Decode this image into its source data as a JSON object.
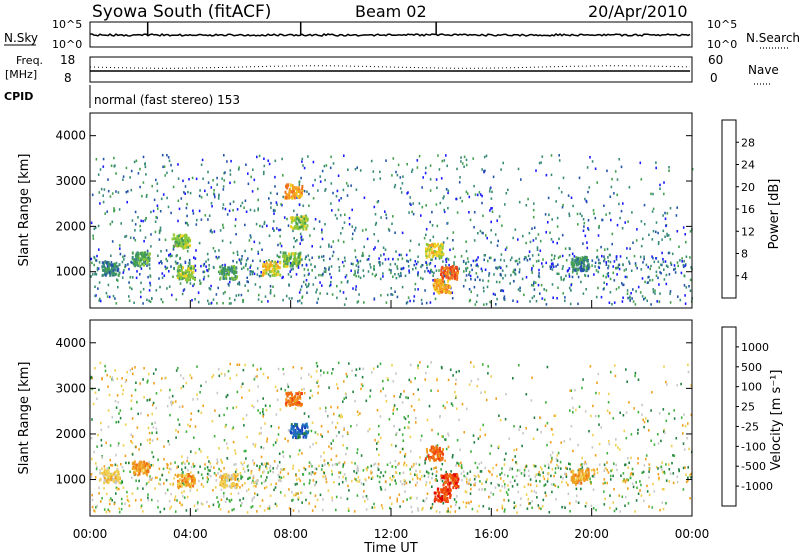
{
  "header": {
    "title": "Syowa South (fitACF)",
    "beam": "Beam 02",
    "date": "20/Apr/2010"
  },
  "noise_panel": {
    "left_label": "N.Sky",
    "right_label": "N.Search",
    "left_ticks": [
      "10^5",
      "10^0"
    ],
    "right_ticks": [
      "10^5",
      "10^0"
    ]
  },
  "freq_panel": {
    "left_label_1": "Freq.",
    "left_label_2": "[MHz]",
    "left_ticks": [
      "18",
      "8"
    ],
    "right_ticks": [
      "60",
      "0"
    ],
    "right_label": "Nave"
  },
  "cpid": {
    "label": "CPID",
    "text": "normal (fast stereo) 153"
  },
  "chart_data": [
    {
      "type": "heatmap",
      "name": "power",
      "ylabel": "Slant Range [km]",
      "xlabel": "",
      "xlim": [
        0,
        24
      ],
      "ylim": [
        200,
        4500
      ],
      "yticks": [
        "1000",
        "2000",
        "3000",
        "4000"
      ],
      "colorbar_label": "Power [dB]",
      "colorbar_ticks": [
        "4",
        "8",
        "12",
        "16",
        "20",
        "24",
        "28"
      ],
      "colorbar_colors": [
        "#1a1aff",
        "#2454a8",
        "#3a8a7a",
        "#44a050",
        "#8cc83c",
        "#f0d020",
        "#f4a020",
        "#f07020",
        "#e84020",
        "#e01010"
      ],
      "clusters": [
        {
          "t": 0.8,
          "r": 1100,
          "level": 2
        },
        {
          "t": 2.0,
          "r": 1300,
          "level": 3
        },
        {
          "t": 3.6,
          "r": 1700,
          "level": 4
        },
        {
          "t": 3.8,
          "r": 1000,
          "level": 4
        },
        {
          "t": 5.5,
          "r": 1000,
          "level": 3
        },
        {
          "t": 7.2,
          "r": 1100,
          "level": 5
        },
        {
          "t": 8.1,
          "r": 2800,
          "level": 6
        },
        {
          "t": 8.3,
          "r": 2100,
          "level": 4
        },
        {
          "t": 8.0,
          "r": 1300,
          "level": 4
        },
        {
          "t": 13.7,
          "r": 1500,
          "level": 5
        },
        {
          "t": 14.3,
          "r": 1000,
          "level": 7
        },
        {
          "t": 14.0,
          "r": 700,
          "level": 6
        },
        {
          "t": 19.5,
          "r": 1200,
          "level": 2
        }
      ]
    },
    {
      "type": "heatmap",
      "name": "velocity",
      "ylabel": "Slant Range [km]",
      "xlabel": "Time UT",
      "xlim": [
        0,
        24
      ],
      "ylim": [
        200,
        4500
      ],
      "xticks": [
        "00:00",
        "04:00",
        "08:00",
        "12:00",
        "16:00",
        "20:00",
        "00:00"
      ],
      "yticks": [
        "1000",
        "2000",
        "3000",
        "4000"
      ],
      "colorbar_label": "Velocity [m s⁻¹]",
      "colorbar_ticks": [
        "1000",
        "500",
        "100",
        "25",
        "-25",
        "-100",
        "-500",
        "-1000"
      ],
      "colorbar_colors": [
        "#1a40c0",
        "#2070c0",
        "#208040",
        "#40b040",
        "#c8c8c8",
        "#f0d050",
        "#f0a020",
        "#f07010",
        "#f04010",
        "#e00000"
      ],
      "clusters": [
        {
          "t": 0.8,
          "r": 1100,
          "level": 5
        },
        {
          "t": 2.0,
          "r": 1300,
          "level": 6
        },
        {
          "t": 3.8,
          "r": 1000,
          "level": 6
        },
        {
          "t": 5.5,
          "r": 1000,
          "level": 5
        },
        {
          "t": 8.1,
          "r": 2800,
          "level": 7
        },
        {
          "t": 8.3,
          "r": 2100,
          "level": 1
        },
        {
          "t": 13.7,
          "r": 1600,
          "level": 7
        },
        {
          "t": 14.3,
          "r": 1000,
          "level": 8
        },
        {
          "t": 14.0,
          "r": 700,
          "level": 8
        },
        {
          "t": 19.5,
          "r": 1100,
          "level": 6
        }
      ]
    }
  ]
}
